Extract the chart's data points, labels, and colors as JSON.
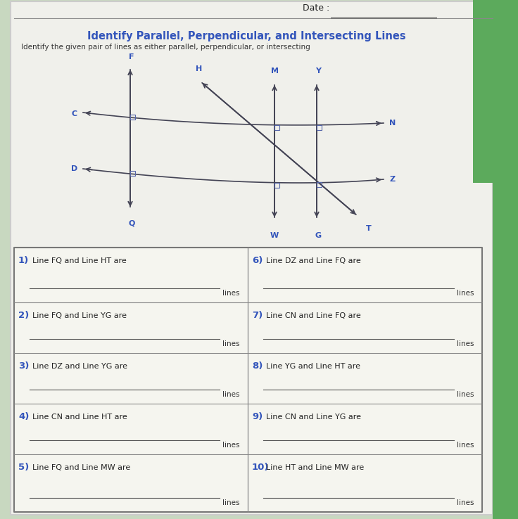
{
  "title": "Identify Parallel, Perpendicular, and Intersecting Lines",
  "date_label": "Date :",
  "subtitle": "Identify the given pair of lines as either parallel, perpendicular, or intersecting",
  "blue_color": "#3355bb",
  "dark_color": "#444455",
  "gray_line": "#777788",
  "questions_left": [
    {
      "num": "1)",
      "text": "Line FQ and Line HT are"
    },
    {
      "num": "2)",
      "text": "Line FQ and Line YG are"
    },
    {
      "num": "3)",
      "text": "Line DZ and Line YG are"
    },
    {
      "num": "4)",
      "text": "Line CN and Line HT are"
    },
    {
      "num": "5)",
      "text": "Line FQ and Line MW are"
    }
  ],
  "questions_right": [
    {
      "num": "6)",
      "text": "Line DZ and Line FQ are"
    },
    {
      "num": "7)",
      "text": "Line CN and Line FQ are"
    },
    {
      "num": "8)",
      "text": "Line YG and Line HT are"
    },
    {
      "num": "9)",
      "text": "Line CN and Line YG are"
    },
    {
      "num": "10)",
      "text": "Line HT and Line MW are"
    }
  ],
  "lines_label": "lines"
}
